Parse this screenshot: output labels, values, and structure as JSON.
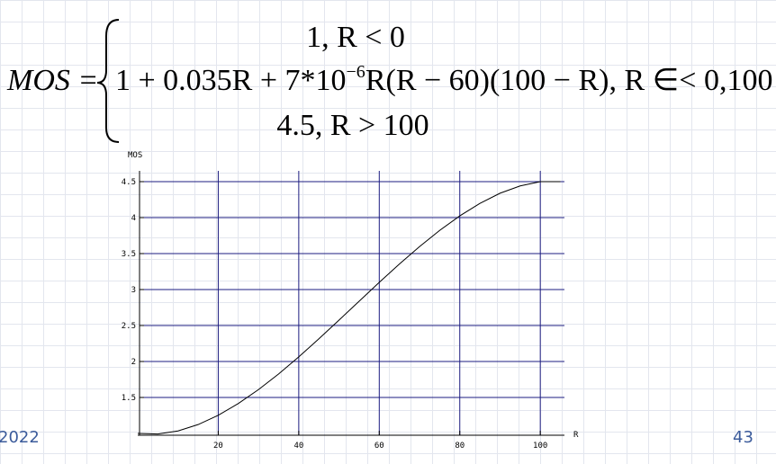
{
  "formula": {
    "lhs": "MOS =",
    "case1": "1,    R < 0",
    "case2_a": "1 + 0.035R + 7*10",
    "case2_exp": "−6",
    "case2_b": "R(R − 60)(100 − R), R ∈< 0,100 >",
    "case3": "4.5,    R > 100"
  },
  "chart_data": {
    "type": "line",
    "ylabel": "MOS",
    "xlabel": "R",
    "x": [
      0,
      5,
      10,
      15,
      20,
      25,
      30,
      35,
      40,
      45,
      50,
      55,
      60,
      65,
      70,
      75,
      80,
      85,
      90,
      95,
      100,
      105
    ],
    "values": [
      1,
      0.992,
      1.035,
      1.123,
      1.252,
      1.416,
      1.609,
      1.827,
      2.064,
      2.315,
      2.575,
      2.838,
      3.1,
      3.355,
      3.597,
      3.822,
      4.024,
      4.198,
      4.339,
      4.441,
      4.5,
      4.5
    ],
    "color": "#000000",
    "xlim": [
      0,
      106
    ],
    "ylim": [
      1,
      4.65
    ],
    "xticks": [
      20,
      40,
      60,
      80,
      100
    ],
    "yticks": [
      1.5,
      2,
      2.5,
      3,
      3.5,
      4,
      4.5
    ],
    "grid": true,
    "grid_color": "#1c1c80"
  },
  "footer": {
    "date": "2022",
    "page": "43"
  }
}
